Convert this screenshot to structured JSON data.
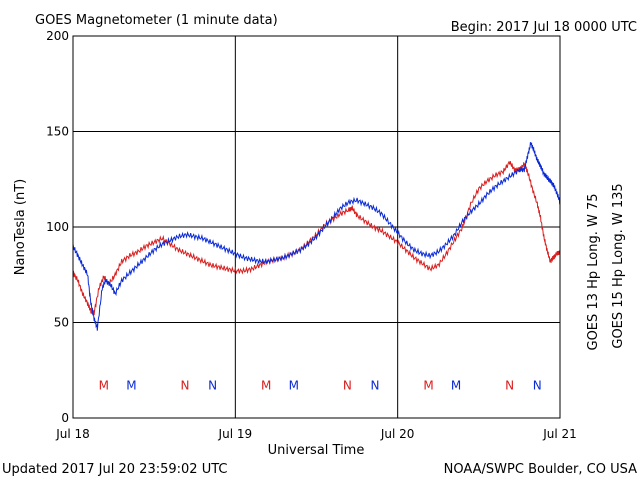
{
  "header": {
    "title": "GOES Magnetometer (1 minute data)",
    "begin": "Begin:  2017 Jul 18 0000 UTC"
  },
  "footer": {
    "updated": "Updated 2017 Jul 20 23:59:02 UTC",
    "credit": "NOAA/SWPC Boulder, CO USA"
  },
  "colors": {
    "goes13": "#d81e1e",
    "goes15": "#0a2ad6"
  },
  "chart_data": {
    "type": "line",
    "xlabel": "Universal Time",
    "ylabel": "NanoTesla (nT)",
    "x_unit": "days since 2017 Jul 18 0000 UTC",
    "xlim": [
      0,
      3
    ],
    "ylim": [
      0,
      200
    ],
    "x_ticks": [
      {
        "x": 0,
        "label": "Jul 18"
      },
      {
        "x": 1,
        "label": "Jul 19"
      },
      {
        "x": 2,
        "label": "Jul 20"
      },
      {
        "x": 3,
        "label": "Jul 21"
      }
    ],
    "y_ticks": [
      0,
      50,
      100,
      150,
      200
    ],
    "grid": true,
    "series": [
      {
        "name": "GOES 13 Hp  Long. W 75",
        "color": "#d81e1e",
        "x": [
          0.0,
          0.03,
          0.06,
          0.09,
          0.11,
          0.13,
          0.16,
          0.19,
          0.22,
          0.26,
          0.3,
          0.35,
          0.4,
          0.45,
          0.5,
          0.55,
          0.6,
          0.65,
          0.7,
          0.75,
          0.8,
          0.85,
          0.9,
          0.95,
          1.0,
          1.05,
          1.1,
          1.15,
          1.2,
          1.25,
          1.3,
          1.35,
          1.4,
          1.45,
          1.5,
          1.55,
          1.6,
          1.65,
          1.7,
          1.72,
          1.75,
          1.8,
          1.85,
          1.9,
          1.95,
          2.0,
          2.05,
          2.1,
          2.15,
          2.2,
          2.25,
          2.3,
          2.35,
          2.4,
          2.45,
          2.5,
          2.55,
          2.6,
          2.65,
          2.69,
          2.72,
          2.75,
          2.78,
          2.8,
          2.83,
          2.86,
          2.88,
          2.9,
          2.92,
          2.94,
          2.96,
          2.98,
          3.0
        ],
        "y": [
          76,
          72,
          65,
          60,
          56,
          55,
          68,
          74,
          70,
          75,
          82,
          85,
          87,
          90,
          92,
          94,
          91,
          88,
          86,
          84,
          82,
          80,
          79,
          78,
          77,
          77,
          78,
          80,
          82,
          83,
          84,
          86,
          88,
          92,
          96,
          101,
          104,
          107,
          109,
          110,
          106,
          103,
          100,
          98,
          95,
          92,
          88,
          84,
          81,
          78,
          80,
          86,
          93,
          100,
          112,
          120,
          124,
          127,
          129,
          134,
          130,
          130,
          133,
          129,
          120,
          112,
          105,
          95,
          88,
          82,
          84,
          86,
          87
        ]
      },
      {
        "name": "GOES 15 Hp  Long. W 135",
        "color": "#0a2ad6",
        "x": [
          0.0,
          0.03,
          0.06,
          0.09,
          0.11,
          0.13,
          0.15,
          0.18,
          0.2,
          0.23,
          0.26,
          0.3,
          0.35,
          0.4,
          0.45,
          0.5,
          0.55,
          0.6,
          0.65,
          0.7,
          0.75,
          0.8,
          0.85,
          0.9,
          0.95,
          1.0,
          1.05,
          1.1,
          1.15,
          1.2,
          1.25,
          1.3,
          1.35,
          1.4,
          1.45,
          1.5,
          1.55,
          1.6,
          1.65,
          1.7,
          1.75,
          1.8,
          1.85,
          1.9,
          1.95,
          2.0,
          2.05,
          2.1,
          2.15,
          2.2,
          2.25,
          2.3,
          2.35,
          2.4,
          2.45,
          2.5,
          2.55,
          2.6,
          2.65,
          2.7,
          2.75,
          2.78,
          2.8,
          2.82,
          2.84,
          2.86,
          2.88,
          2.9,
          2.92,
          2.94,
          2.96,
          2.98,
          3.0
        ],
        "y": [
          90,
          85,
          80,
          75,
          60,
          52,
          47,
          68,
          72,
          70,
          65,
          72,
          76,
          80,
          84,
          88,
          91,
          93,
          95,
          96,
          95,
          94,
          92,
          90,
          88,
          86,
          84,
          83,
          82,
          82,
          83,
          84,
          86,
          88,
          91,
          95,
          100,
          105,
          110,
          113,
          114,
          112,
          110,
          107,
          102,
          97,
          92,
          88,
          86,
          85,
          87,
          91,
          96,
          103,
          108,
          112,
          117,
          121,
          124,
          127,
          130,
          130,
          137,
          144,
          140,
          135,
          132,
          128,
          126,
          124,
          122,
          118,
          113
        ]
      }
    ],
    "markers": {
      "y": 17,
      "items": [
        {
          "x": 0.19,
          "label": "M",
          "series": 0
        },
        {
          "x": 0.36,
          "label": "M",
          "series": 1
        },
        {
          "x": 0.69,
          "label": "N",
          "series": 0
        },
        {
          "x": 0.86,
          "label": "N",
          "series": 1
        },
        {
          "x": 1.19,
          "label": "M",
          "series": 0
        },
        {
          "x": 1.36,
          "label": "M",
          "series": 1
        },
        {
          "x": 1.69,
          "label": "N",
          "series": 0
        },
        {
          "x": 1.86,
          "label": "N",
          "series": 1
        },
        {
          "x": 2.19,
          "label": "M",
          "series": 0
        },
        {
          "x": 2.36,
          "label": "M",
          "series": 1
        },
        {
          "x": 2.69,
          "label": "N",
          "series": 0
        },
        {
          "x": 2.86,
          "label": "N",
          "series": 1
        }
      ]
    }
  }
}
